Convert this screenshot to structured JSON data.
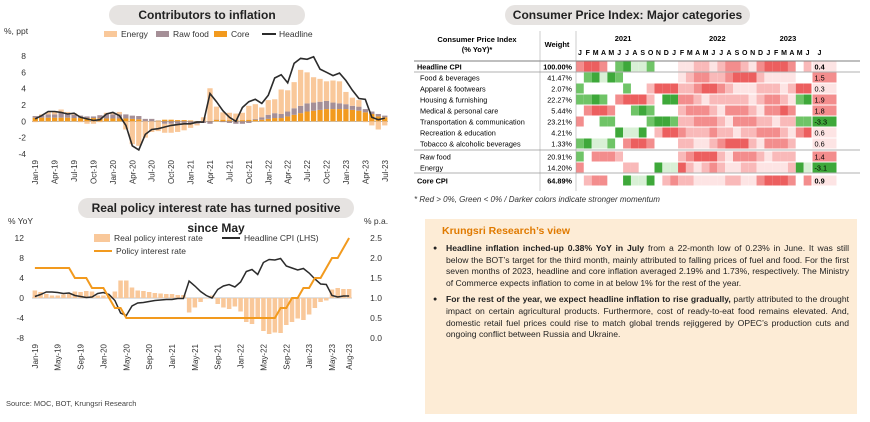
{
  "chart1": {
    "title": "Contributors to inflation",
    "yunit": "%, ppt",
    "legend": [
      "Energy",
      "Raw food",
      "Core",
      "Headline"
    ],
    "colors": {
      "energy": "#f9c89a",
      "rawfood": "#a58f97",
      "core": "#f29a1e",
      "headline": "#2b2b2b"
    },
    "yticks": [
      "8",
      "6",
      "4",
      "2",
      "0",
      "-2",
      "-4"
    ],
    "xticks": [
      "Jan-19",
      "Apr-19",
      "Jul-19",
      "Oct-19",
      "Jan-20",
      "Apr-20",
      "Jul-20",
      "Oct-20",
      "Jan-21",
      "Apr-21",
      "Jul-21",
      "Oct-21",
      "Jan-22",
      "Apr-22",
      "Jul-22",
      "Oct-22",
      "Jan-23",
      "Apr-23",
      "Jul-23"
    ]
  },
  "chart2": {
    "title": "Real policy interest rate has turned positive since May",
    "yunit_left": "% YoY",
    "yunit_right": "% p.a.",
    "legend": [
      "Real policy interest rate",
      "Headline CPI (LHS)",
      "Policy interest rate"
    ],
    "yticks_left": [
      "12",
      "8",
      "4",
      "0",
      "-4",
      "-8"
    ],
    "yticks_right": [
      "2.5",
      "2.0",
      "1.5",
      "1.0",
      "0.5",
      "0.0"
    ],
    "xticks": [
      "Jan-19",
      "May-19",
      "Sep-19",
      "Jan-20",
      "May-20",
      "Sep-20",
      "Jan-21",
      "May-21",
      "Sep-21",
      "Jan-22",
      "May-22",
      "Sep-22",
      "Jan-23",
      "May-23",
      "Aug-23"
    ]
  },
  "source": "Source: MOC, BOT, Krungsri Research",
  "cpi_table": {
    "title": "Consumer Price Index: Major categories",
    "col_header": "Consumer Price Index (% YoY)*",
    "weight_header": "Weight",
    "years": [
      "2021",
      "2022",
      "2023"
    ],
    "months_full": [
      "J",
      "F",
      "M",
      "A",
      "M",
      "J",
      "J",
      "A",
      "S",
      "O",
      "N",
      "D"
    ],
    "months_2023": [
      "J",
      "F",
      "M",
      "A",
      "M",
      "J"
    ],
    "last_col_header": "J",
    "rows": [
      {
        "name": "Headline CPI",
        "weight": "100.00%",
        "latest": "0.4",
        "bold": true
      },
      {
        "name": "Food & beverages",
        "weight": "41.47%",
        "latest": "1.5",
        "bold": false
      },
      {
        "name": "Apparel & footwears",
        "weight": "2.07%",
        "latest": "0.3",
        "bold": false
      },
      {
        "name": "Housing & furnishing",
        "weight": "22.27%",
        "latest": "1.9",
        "bold": false
      },
      {
        "name": "Medical & personal care",
        "weight": "5.44%",
        "latest": "1.8",
        "bold": false
      },
      {
        "name": "Transportation & communication",
        "weight": "23.21%",
        "latest": "-3.3",
        "bold": false
      },
      {
        "name": "Recreation & education",
        "weight": "4.21%",
        "latest": "0.6",
        "bold": false
      },
      {
        "name": "Tobacco & alcoholic beverages",
        "weight": "1.33%",
        "latest": "0.6",
        "bold": false
      },
      {
        "name": "Raw food",
        "weight": "20.91%",
        "latest": "1.4",
        "bold": false
      },
      {
        "name": "Energy",
        "weight": "14.20%",
        "latest": "-3.1",
        "bold": false
      },
      {
        "name": "Core CPI",
        "weight": "64.89%",
        "latest": "0.9",
        "bold": true
      }
    ],
    "note": "* Red > 0%, Green < 0% / Darker colors indicate stronger momentum"
  },
  "view": {
    "title": "Krungsri Research’s view",
    "b1_bold": "Headline inflation inched-up 0.38% YoY in July",
    "b1_text": " from a 22-month low of 0.23% in June. It was still below the BOT’s target for the third month, mainly attributed to falling prices of fuel and food. For the first seven months of 2023, headline and core inflation averaged 2.19% and 1.73%, respectively. The Ministry of Commerce expects inflation to come in at below 1% for the rest of the year.",
    "b2_bold": "For the rest of the year, we expect headline inflation to rise gradually,",
    "b2_text": " partly attributed to the drought impact on certain agricultural products. Furthermore, cost of ready-to-eat food remains elevated. And, domestic retail fuel prices could rise to match global trends rejiggered by OPEC’s production cuts and ongoing conflict between Russia and Ukraine."
  },
  "chart_data": [
    {
      "type": "bar",
      "title": "Contributors to inflation",
      "ylabel": "%, ppt",
      "ylim": [
        -4,
        8
      ],
      "stacked": true,
      "x_start": "2019-01",
      "x_end": "2023-07",
      "series": [
        {
          "name": "Core",
          "values": [
            0.45,
            0.45,
            0.45,
            0.45,
            0.45,
            0.45,
            0.4,
            0.4,
            0.4,
            0.4,
            0.35,
            0.35,
            0.35,
            0.35,
            0.35,
            0.3,
            0.25,
            0.0,
            0.0,
            0.1,
            0.2,
            0.2,
            0.15,
            0.15,
            0.1,
            0.0,
            0.0,
            0.05,
            0.2,
            0.2,
            0.15,
            0.15,
            0.15,
            0.2,
            0.2,
            0.2,
            0.3,
            0.4,
            0.4,
            0.6,
            0.8,
            1.0,
            1.2,
            1.3,
            1.4,
            1.5,
            1.5,
            1.5,
            1.5,
            1.4,
            1.3,
            1.1,
            0.9,
            0.6,
            0.5
          ]
        },
        {
          "name": "Raw food",
          "values": [
            0.2,
            0.3,
            0.4,
            0.4,
            0.6,
            0.5,
            0.4,
            0.3,
            0.2,
            0.2,
            0.4,
            0.5,
            0.5,
            0.5,
            0.5,
            0.4,
            0.4,
            0.3,
            0.3,
            0.0,
            -0.3,
            -0.3,
            -0.3,
            -0.2,
            -0.3,
            -0.3,
            -0.2,
            -0.3,
            0.0,
            -0.1,
            -0.2,
            -0.3,
            -0.3,
            -0.2,
            0.1,
            0.3,
            0.5,
            0.6,
            0.5,
            0.6,
            0.8,
            0.9,
            1.0,
            1.0,
            1.0,
            1.0,
            0.8,
            0.7,
            0.6,
            0.5,
            0.5,
            0.4,
            0.3,
            0.3,
            0.2
          ]
        },
        {
          "name": "Energy",
          "values": [
            -0.1,
            0.1,
            0.3,
            0.4,
            0.4,
            0.2,
            0.2,
            -0.1,
            -0.3,
            -0.3,
            -0.1,
            0.2,
            0.2,
            0.3,
            -1.0,
            -2.8,
            -3.0,
            -2.0,
            -1.3,
            -1.2,
            -1.1,
            -1.1,
            -1.0,
            -0.9,
            -0.5,
            -0.2,
            0.5,
            4.0,
            1.6,
            0.9,
            0.9,
            0.8,
            0.9,
            1.7,
            1.8,
            1.2,
            1.8,
            1.7,
            3.0,
            2.6,
            3.2,
            4.4,
            3.8,
            3.1,
            2.8,
            2.4,
            2.7,
            2.7,
            1.5,
            1.0,
            0.8,
            -0.1,
            -0.5,
            -1.0,
            -0.5
          ]
        },
        {
          "name": "Headline",
          "type": "line",
          "values": [
            0.3,
            0.7,
            1.2,
            1.2,
            1.1,
            0.9,
            1.0,
            0.5,
            0.3,
            0.1,
            0.2,
            0.9,
            1.1,
            0.7,
            -0.5,
            -3.0,
            -3.5,
            -1.6,
            -1.0,
            -0.9,
            -0.7,
            -0.5,
            -0.4,
            -0.3,
            -0.3,
            -0.1,
            -0.1,
            3.4,
            2.4,
            1.3,
            0.5,
            0.0,
            1.7,
            2.4,
            2.7,
            2.2,
            3.2,
            5.3,
            5.7,
            4.7,
            7.1,
            7.7,
            7.6,
            7.9,
            6.4,
            6.0,
            5.6,
            5.9,
            5.0,
            3.8,
            2.8,
            2.7,
            0.5,
            0.2,
            0.4
          ]
        }
      ]
    },
    {
      "type": "line",
      "title": "Real policy interest rate has turned positive since May",
      "ylabel_left": "% YoY",
      "ylabel_right": "% p.a.",
      "ylim_left": [
        -8,
        12
      ],
      "ylim_right": [
        0,
        2.5
      ],
      "x_start": "2019-01",
      "x_end": "2023-08",
      "series": [
        {
          "name": "Real policy interest rate",
          "type": "bar",
          "axis": "left",
          "values": [
            1.5,
            1.2,
            0.8,
            0.5,
            0.5,
            0.7,
            0.8,
            1.3,
            1.2,
            1.4,
            1.3,
            0.5,
            0.5,
            0.5,
            1.3,
            3.5,
            3.5,
            2.1,
            1.5,
            1.4,
            1.2,
            1.0,
            0.9,
            0.8,
            0.8,
            0.6,
            0.6,
            -2.9,
            -1.9,
            -0.8,
            -0.1,
            0.5,
            -1.2,
            -1.9,
            -2.2,
            -1.7,
            -2.7,
            -4.8,
            -5.2,
            -4.2,
            -6.6,
            -7.2,
            -6.9,
            -7.0,
            -5.4,
            -4.8,
            -4.1,
            -4.4,
            -3.3,
            -2.0,
            -0.8,
            -0.5,
            1.7,
            2.0,
            1.8,
            1.8
          ]
        },
        {
          "name": "Headline CPI (LHS)",
          "type": "line",
          "axis": "left",
          "values": [
            0.3,
            0.7,
            1.2,
            1.2,
            1.1,
            0.9,
            1.0,
            0.5,
            0.3,
            0.1,
            0.2,
            0.9,
            1.1,
            0.7,
            -0.5,
            -3.0,
            -3.5,
            -1.6,
            -1.0,
            -0.9,
            -0.7,
            -0.5,
            -0.4,
            -0.3,
            -0.3,
            -0.1,
            -0.1,
            3.4,
            2.4,
            1.3,
            0.5,
            0.0,
            1.7,
            2.4,
            2.7,
            2.2,
            3.2,
            5.3,
            5.7,
            4.7,
            7.1,
            7.7,
            7.6,
            7.9,
            6.4,
            6.0,
            5.6,
            5.9,
            5.0,
            3.8,
            2.8,
            2.7,
            0.5,
            0.2,
            0.4,
            0.4
          ]
        },
        {
          "name": "Policy interest rate",
          "type": "line",
          "axis": "right",
          "values": [
            1.75,
            1.75,
            1.75,
            1.75,
            1.75,
            1.75,
            1.75,
            1.5,
            1.5,
            1.5,
            1.25,
            1.25,
            1.25,
            1.0,
            0.75,
            0.75,
            0.5,
            0.5,
            0.5,
            0.5,
            0.5,
            0.5,
            0.5,
            0.5,
            0.5,
            0.5,
            0.5,
            0.5,
            0.5,
            0.5,
            0.5,
            0.5,
            0.5,
            0.5,
            0.5,
            0.5,
            0.5,
            0.5,
            0.5,
            0.5,
            0.5,
            0.5,
            0.5,
            0.75,
            0.75,
            1.0,
            1.0,
            1.25,
            1.25,
            1.5,
            1.5,
            1.75,
            2.0,
            2.0,
            2.25,
            2.5
          ]
        }
      ]
    },
    {
      "type": "heatmap",
      "title": "Consumer Price Index: Major categories",
      "rows": [
        "Headline CPI",
        "Food & beverages",
        "Apparel & footwears",
        "Housing & furnishing",
        "Medical & personal care",
        "Transportation & communication",
        "Recreation & education",
        "Tobacco & alcoholic beverages",
        "Raw food",
        "Energy",
        "Core CPI"
      ],
      "last_values": [
        0.4,
        1.5,
        0.3,
        1.9,
        1.8,
        -3.3,
        0.6,
        0.6,
        1.4,
        -3.1,
        0.9
      ]
    }
  ]
}
